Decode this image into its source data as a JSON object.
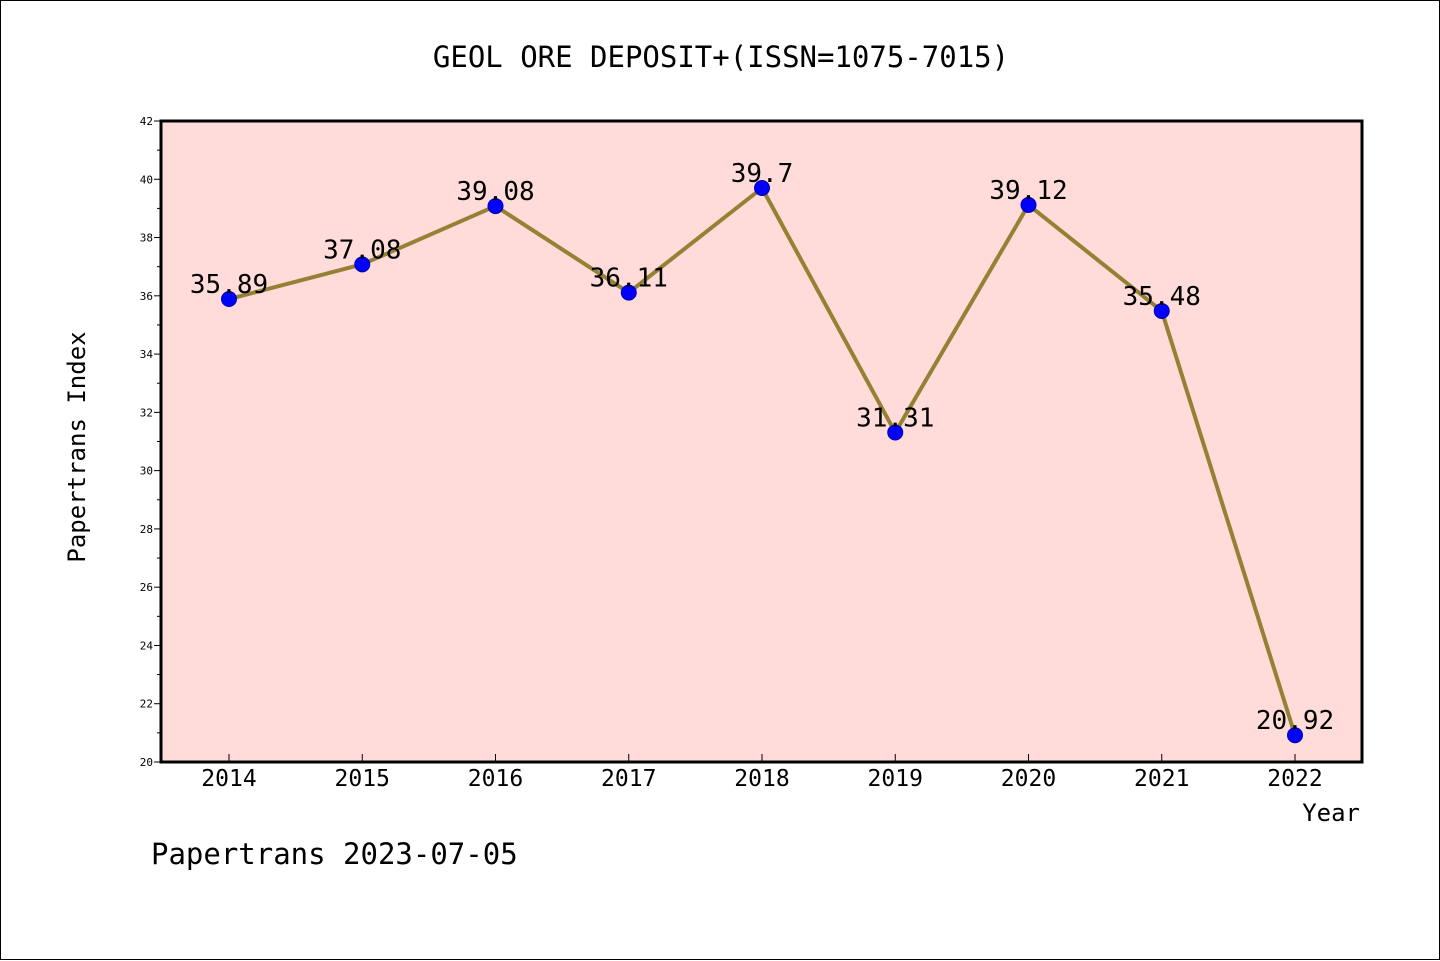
{
  "chart_data": {
    "type": "line",
    "title": "GEOL ORE DEPOSIT+(ISSN=1075-7015)",
    "xlabel": "Year",
    "ylabel": "Papertrans Index",
    "categories": [
      "2014",
      "2015",
      "2016",
      "2017",
      "2018",
      "2019",
      "2020",
      "2021",
      "2022"
    ],
    "series": [
      {
        "values": [
          35.89,
          37.08,
          39.08,
          36.11,
          39.7,
          31.31,
          39.12,
          35.48,
          20.92
        ],
        "data_labels": [
          "35.89",
          "37.08",
          "39.08",
          "36.11",
          "39.7",
          "31.31",
          "39.12",
          "35.48",
          "20.92"
        ]
      }
    ],
    "ylim": [
      20,
      42
    ],
    "yticks": [
      "20",
      "22",
      "24",
      "26",
      "28",
      "30",
      "32",
      "34",
      "36",
      "38",
      "40",
      "42"
    ],
    "grid": false,
    "legend": "none",
    "colors": {
      "plot_background": "#ffdcd9",
      "line": "#948134",
      "marker": "#0000ff",
      "marker_edge": "#0000aa",
      "axes": "#000000"
    }
  },
  "footer": {
    "text": "Papertrans 2023-07-05"
  }
}
